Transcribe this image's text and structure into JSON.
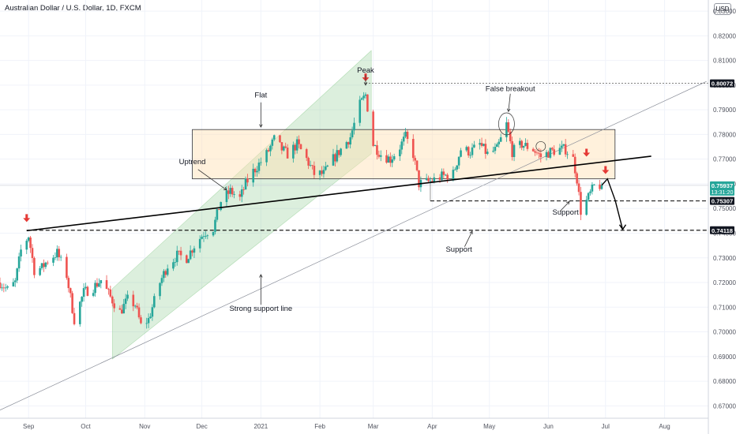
{
  "header": {
    "title": "Australian Dollar / U.S. Dollar, 1D, FXCM",
    "currency_badge": "USD"
  },
  "chart_data": {
    "type": "candlestick",
    "title": "Australian Dollar / U.S. Dollar, 1D, FXCM",
    "ylim": [
      0.665,
      0.8345
    ],
    "y_ticks": [
      "0.67000",
      "0.68000",
      "0.69000",
      "0.70000",
      "0.71000",
      "0.72000",
      "0.73000",
      "0.74000",
      "0.75000",
      "0.76000",
      "0.77000",
      "0.78000",
      "0.79000",
      "0.80000",
      "0.81000",
      "0.82000",
      "0.83000"
    ],
    "x_start": "2020-08-17",
    "x_end": "2021-08-24",
    "x_ticks": [
      {
        "date": "2020-09-01",
        "label": "Sep"
      },
      {
        "date": "2020-10-01",
        "label": "Oct"
      },
      {
        "date": "2020-11-01",
        "label": "Nov"
      },
      {
        "date": "2020-12-01",
        "label": "Dec"
      },
      {
        "date": "2021-01-01",
        "label": "2021"
      },
      {
        "date": "2021-02-01",
        "label": "Feb"
      },
      {
        "date": "2021-03-01",
        "label": "Mar"
      },
      {
        "date": "2021-04-01",
        "label": "Apr"
      },
      {
        "date": "2021-05-01",
        "label": "May"
      },
      {
        "date": "2021-06-01",
        "label": "Jun"
      },
      {
        "date": "2021-07-01",
        "label": "Jul"
      },
      {
        "date": "2021-08-01",
        "label": "Aug"
      }
    ],
    "colors": {
      "up": "#26a69a",
      "down": "#ef5350",
      "accent": "#e53935",
      "line": "#000000",
      "grid": "#f0f3fa"
    },
    "close_path": [
      [
        "2020-08-17",
        0.72
      ],
      [
        "2020-08-21",
        0.717
      ],
      [
        "2020-08-25",
        0.72
      ],
      [
        "2020-08-28",
        0.733
      ],
      [
        "2020-09-01",
        0.739
      ],
      [
        "2020-09-04",
        0.725
      ],
      [
        "2020-09-08",
        0.726
      ],
      [
        "2020-09-11",
        0.729
      ],
      [
        "2020-09-16",
        0.732
      ],
      [
        "2020-09-21",
        0.723
      ],
      [
        "2020-09-25",
        0.705
      ],
      [
        "2020-09-30",
        0.716
      ],
      [
        "2020-10-05",
        0.718
      ],
      [
        "2020-10-09",
        0.721
      ],
      [
        "2020-10-14",
        0.714
      ],
      [
        "2020-10-19",
        0.708
      ],
      [
        "2020-10-23",
        0.713
      ],
      [
        "2020-10-27",
        0.711
      ],
      [
        "2020-10-30",
        0.7025
      ],
      [
        "2020-11-03",
        0.705
      ],
      [
        "2020-11-09",
        0.72
      ],
      [
        "2020-11-13",
        0.727
      ],
      [
        "2020-11-18",
        0.731
      ],
      [
        "2020-11-23",
        0.73
      ],
      [
        "2020-11-27",
        0.735
      ],
      [
        "2020-12-02",
        0.74
      ],
      [
        "2020-12-07",
        0.742
      ],
      [
        "2020-12-11",
        0.753
      ],
      [
        "2020-12-16",
        0.757
      ],
      [
        "2020-12-21",
        0.754
      ],
      [
        "2020-12-24",
        0.76
      ],
      [
        "2020-12-28",
        0.765
      ],
      [
        "2021-01-04",
        0.772
      ],
      [
        "2021-01-08",
        0.778
      ],
      [
        "2021-01-12",
        0.774
      ],
      [
        "2021-01-15",
        0.772
      ],
      [
        "2021-01-20",
        0.776
      ],
      [
        "2021-01-25",
        0.77
      ],
      [
        "2021-01-29",
        0.764
      ],
      [
        "2021-02-03",
        0.764
      ],
      [
        "2021-02-08",
        0.77
      ],
      [
        "2021-02-12",
        0.774
      ],
      [
        "2021-02-17",
        0.779
      ],
      [
        "2021-02-22",
        0.792
      ],
      [
        "2021-02-25",
        0.796
      ],
      [
        "2021-03-01",
        0.776
      ],
      [
        "2021-03-05",
        0.772
      ],
      [
        "2021-03-10",
        0.77
      ],
      [
        "2021-03-15",
        0.775
      ],
      [
        "2021-03-18",
        0.779
      ],
      [
        "2021-03-22",
        0.772
      ],
      [
        "2021-03-25",
        0.76
      ],
      [
        "2021-03-31",
        0.761
      ],
      [
        "2021-04-06",
        0.763
      ],
      [
        "2021-04-12",
        0.764
      ],
      [
        "2021-04-16",
        0.774
      ],
      [
        "2021-04-21",
        0.773
      ],
      [
        "2021-04-26",
        0.776
      ],
      [
        "2021-04-30",
        0.772
      ],
      [
        "2021-05-05",
        0.774
      ],
      [
        "2021-05-10",
        0.784
      ],
      [
        "2021-05-13",
        0.773
      ],
      [
        "2021-05-18",
        0.776
      ],
      [
        "2021-05-24",
        0.774
      ],
      [
        "2021-05-28",
        0.771
      ],
      [
        "2021-06-02",
        0.773
      ],
      [
        "2021-06-07",
        0.774
      ],
      [
        "2021-06-10",
        0.774
      ],
      [
        "2021-06-14",
        0.77
      ],
      [
        "2021-06-16",
        0.762
      ],
      [
        "2021-06-18",
        0.749
      ],
      [
        "2021-06-21",
        0.753
      ],
      [
        "2021-06-25",
        0.759
      ],
      [
        "2021-06-29",
        0.7594
      ]
    ],
    "trend_lines": [
      {
        "from": [
          "2020-08-31",
          0.741
        ],
        "to": [
          "2021-07-25",
          0.7712
        ]
      },
      {
        "from": [
          "2020-08-17",
          0.6683
        ],
        "to": [
          "2021-08-23",
          0.8015
        ]
      }
    ],
    "channel": {
      "lower": [
        [
          "2020-10-15",
          0.689
        ],
        [
          "2021-02-28",
          0.7722
        ]
      ],
      "upper": [
        [
          "2020-10-15",
          0.7175
        ],
        [
          "2021-02-28",
          0.814
        ]
      ]
    },
    "range_box": {
      "from": "2020-11-26",
      "to": "2021-07-06",
      "low": 0.762,
      "high": 0.782
    },
    "horizontal_levels": [
      0.80072,
      0.75307,
      0.74118
    ],
    "price_labels": [
      {
        "value": 0.80072,
        "text": "0.80072",
        "style": "dark"
      },
      {
        "value": 0.75937,
        "text": "0.75937",
        "sub": "13:31:20",
        "style": "green"
      },
      {
        "value": 0.75307,
        "text": "0.75307",
        "style": "dark"
      },
      {
        "value": 0.74118,
        "text": "0.74118",
        "style": "dark"
      }
    ],
    "annotations": [
      {
        "text": "Peak",
        "date": "2021-02-25",
        "value": 0.805
      },
      {
        "text": "Flat",
        "date": "2021-01-01",
        "value": 0.795
      },
      {
        "text": "False breakout",
        "date": "2021-05-12",
        "value": 0.7975
      },
      {
        "text": "Uptrend",
        "date": "2020-11-26",
        "value": 0.768
      },
      {
        "text": "Support",
        "date": "2021-06-10",
        "value": 0.7475
      },
      {
        "text": "Support",
        "date": "2021-04-15",
        "value": 0.7325
      },
      {
        "text": "Strong support line",
        "date": "2021-01-01",
        "value": 0.7085
      }
    ],
    "down_markers": [
      [
        "2020-08-31",
        0.7445
      ],
      [
        "2021-02-25",
        0.8015
      ],
      [
        "2021-06-21",
        0.771
      ],
      [
        "2021-07-01",
        0.764
      ]
    ],
    "projection": [
      [
        "2021-06-29",
        0.7594
      ],
      [
        "2021-07-02",
        0.762
      ],
      [
        "2021-07-06",
        0.7535
      ],
      [
        "2021-07-10",
        0.7415
      ]
    ]
  }
}
